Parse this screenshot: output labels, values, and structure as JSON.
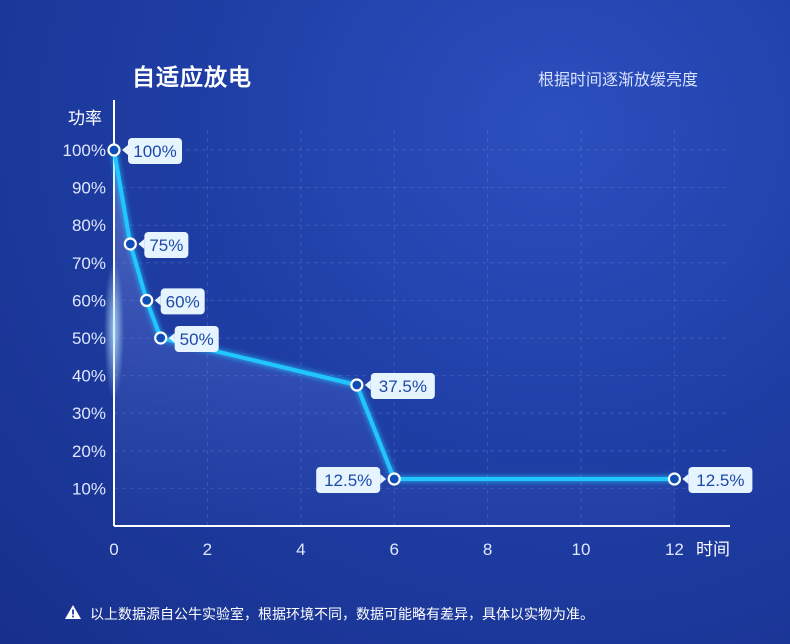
{
  "title": "自适应放电",
  "subtitle": "根据时间逐渐放缓亮度",
  "footer": "以上数据源自公牛实验室，根据环境不同，数据可能略有差异，具体以实物为准。",
  "icons": {
    "footer": "warning-icon"
  },
  "colors": {
    "background": "#1f3ea5",
    "line": "#23c6ff",
    "label_bg": "#e6f4ff",
    "label_text": "#1d4aa8"
  },
  "chart_data": {
    "type": "line",
    "xlabel": "时间",
    "ylabel": "功率",
    "xlim": [
      0,
      13.2
    ],
    "ylim": [
      0,
      1.05
    ],
    "x_ticks": [
      0,
      2,
      4,
      6,
      8,
      10,
      12
    ],
    "y_ticks": [
      "10%",
      "20%",
      "30%",
      "40%",
      "50%",
      "60%",
      "70%",
      "80%",
      "90%",
      "100%"
    ],
    "grid": true,
    "series": [
      {
        "points": [
          {
            "x": 0,
            "y": 1.0
          },
          {
            "x": 0.35,
            "y": 0.75
          },
          {
            "x": 0.7,
            "y": 0.6
          },
          {
            "x": 1.0,
            "y": 0.5
          },
          {
            "x": 5.2,
            "y": 0.375
          },
          {
            "x": 6.0,
            "y": 0.125
          },
          {
            "x": 12.0,
            "y": 0.125
          }
        ]
      }
    ],
    "point_labels": [
      "100%",
      "75%",
      "60%",
      "50%",
      "37.5%",
      "12.5%",
      "12.5%"
    ]
  }
}
